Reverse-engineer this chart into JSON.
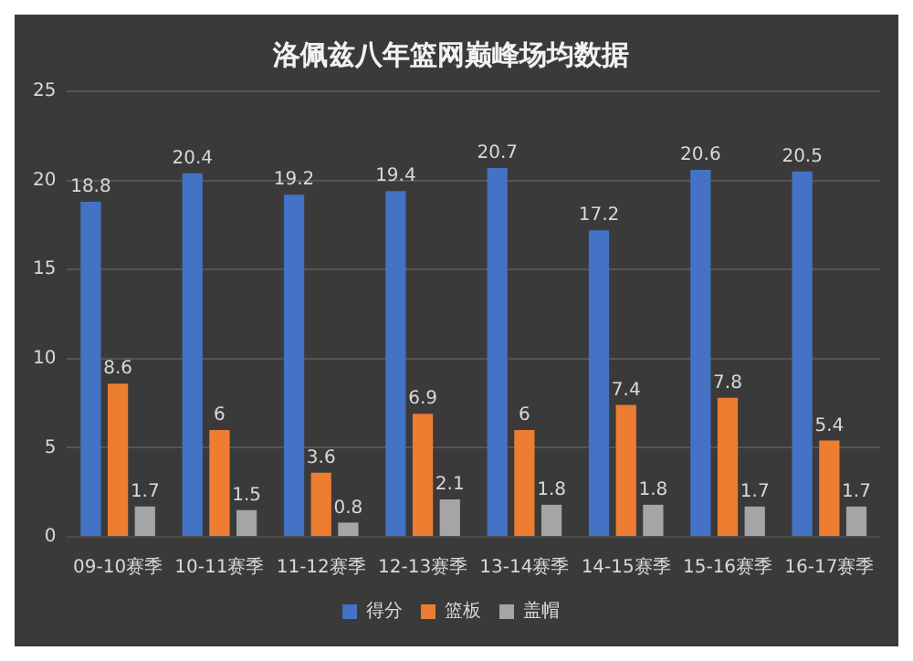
{
  "chart_data": {
    "type": "bar",
    "title": "洛佩兹八年篮网巅峰场均数据",
    "categories": [
      "09-10赛季",
      "10-11赛季",
      "11-12赛季",
      "12-13赛季",
      "13-14赛季",
      "14-15赛季",
      "15-16赛季",
      "16-17赛季"
    ],
    "series": [
      {
        "name": "得分",
        "color": "#4472c4",
        "values": [
          18.8,
          20.4,
          19.2,
          19.4,
          20.7,
          17.2,
          20.6,
          20.5
        ]
      },
      {
        "name": "篮板",
        "color": "#ed7d31",
        "values": [
          8.6,
          6,
          3.6,
          6.9,
          6,
          7.4,
          7.8,
          5.4
        ]
      },
      {
        "name": "盖帽",
        "color": "#a5a5a5",
        "values": [
          1.7,
          1.5,
          0.8,
          2.1,
          1.8,
          1.8,
          1.7,
          1.7
        ]
      }
    ],
    "ylim": [
      0,
      25
    ],
    "yticks": [
      0,
      5,
      10,
      15,
      20,
      25
    ],
    "grid": "y",
    "legend": "bottom",
    "data_labels": true
  }
}
